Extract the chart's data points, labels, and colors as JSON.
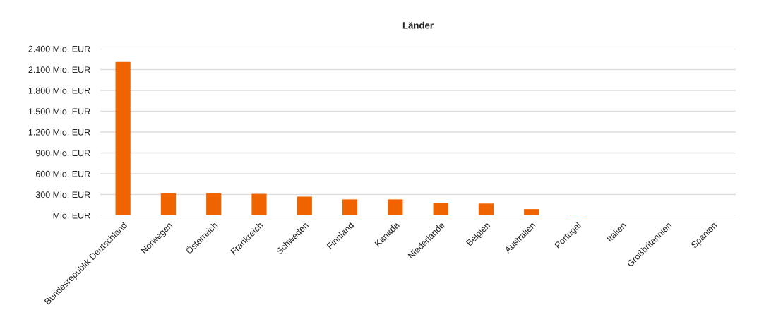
{
  "chart_data": {
    "type": "bar",
    "title": "Länder",
    "categories": [
      "Bundesrepublik Deutschland",
      "Norwegen",
      "Österreich",
      "Frankreich",
      "Schweden",
      "Finnland",
      "Kanada",
      "Niederlande",
      "Belgien",
      "Australien",
      "Portugal",
      "Italien",
      "Großbritannien",
      "Spanien"
    ],
    "values": [
      2210,
      320,
      320,
      310,
      270,
      230,
      230,
      180,
      170,
      90,
      10,
      0,
      0,
      0
    ],
    "color": "#f06400",
    "ylim": [
      0,
      2400
    ],
    "yticks": [
      {
        "value": 0,
        "label": "Mio. EUR"
      },
      {
        "value": 300,
        "label": "300 Mio. EUR"
      },
      {
        "value": 600,
        "label": "600 Mio. EUR"
      },
      {
        "value": 900,
        "label": "900 Mio. EUR"
      },
      {
        "value": 1200,
        "label": "1.200 Mio. EUR"
      },
      {
        "value": 1500,
        "label": "1.500 Mio. EUR"
      },
      {
        "value": 1800,
        "label": "1.800 Mio. EUR"
      },
      {
        "value": 2100,
        "label": "2.100 Mio. EUR"
      },
      {
        "value": 2400,
        "label": "2.400 Mio. EUR"
      }
    ],
    "grid": "y",
    "legend": false
  }
}
